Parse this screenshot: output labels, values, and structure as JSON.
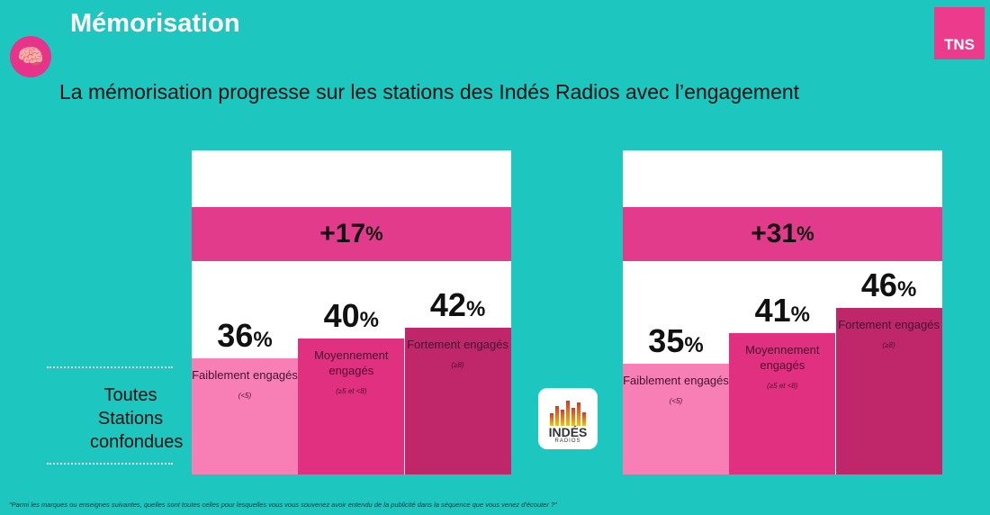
{
  "header": {
    "title": "Mémorisation",
    "logo": "TNS",
    "icon": "brain-icon",
    "subtitle": "La mémorisation progresse sur les stations des Indés Radios avec l’engagement"
  },
  "row_label": "Toutes Stations confondues",
  "footnote": "\"Parmi les marques ou enseignes suivantes, quelles sont toutes celles pour lesquelles vous vous souvenez avoir entendu de la publicité dans la séquence que vous venez d'écouter ?\"",
  "center_logo": {
    "line1": "INDÉS",
    "line2": "RADIOS"
  },
  "colors": {
    "background": "#1ec6c0",
    "banner": "#e23b8c",
    "bars": [
      "#f77fb5",
      "#e1307f",
      "#c0266a"
    ]
  },
  "chart_data": [
    {
      "type": "bar",
      "uplift": "+17",
      "unit": "%",
      "categories": [
        "Faiblement engagés",
        "Moyennement engagés",
        "Fortement engagés"
      ],
      "ranges": [
        "(<5)",
        "(≥5 et <8)",
        "(≥8)"
      ],
      "values": [
        36,
        40,
        42
      ]
    },
    {
      "type": "bar",
      "uplift": "+31",
      "unit": "%",
      "categories": [
        "Faiblement engagés",
        "Moyennement engagés",
        "Fortement engagés"
      ],
      "ranges": [
        "(<5)",
        "(≥5 et <8)",
        "(≥8)"
      ],
      "values": [
        35,
        41,
        46
      ]
    }
  ]
}
